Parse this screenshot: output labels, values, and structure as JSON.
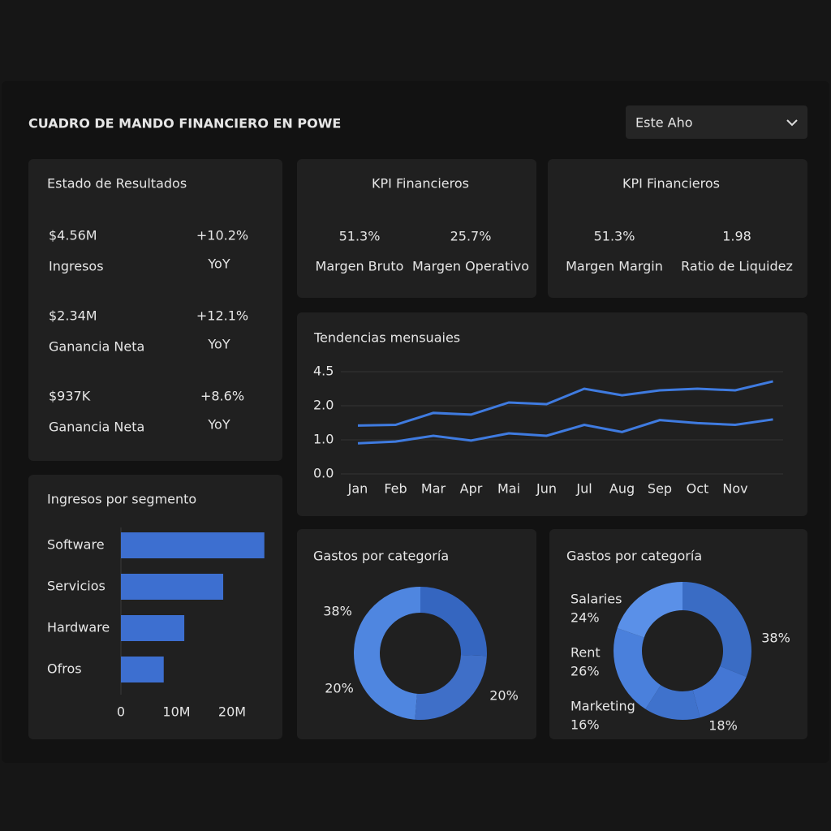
{
  "header": {
    "title": "CUADRO DE MANDO FINANCIERO EN POWE",
    "filter": "Este Aho"
  },
  "income_statement": {
    "title": "Estado de Resultados",
    "items": [
      {
        "value": "$4.56M",
        "label": "Ingresos",
        "change": "+10.2%",
        "period": "YoY"
      },
      {
        "value": "$2.34M",
        "label": "Ganancia Neta",
        "change": "+12.1%",
        "period": "YoY"
      },
      {
        "value": "$937K",
        "label": "Ganancia Neta",
        "change": "+8.6%",
        "period": "YoY"
      }
    ]
  },
  "kpis": [
    {
      "title": "KPI Financieros",
      "items": [
        {
          "value": "51.3%",
          "label": "Margen Bruto"
        },
        {
          "value": "25.7%",
          "label": "Margen Operativo"
        }
      ]
    },
    {
      "title": "KPI Financieros",
      "items": [
        {
          "value": "51.3%",
          "label": "Margen Margin"
        },
        {
          "value": "1.98",
          "label": "Ratio de Liquidez"
        }
      ]
    }
  ],
  "chart_data": [
    {
      "type": "line",
      "title": "Tendencias mensuaies",
      "categories": [
        "Jan",
        "Feb",
        "Mar",
        "Apr",
        "Mai",
        "Jun",
        "Jul",
        "Aug",
        "Sep",
        "Oct",
        "Nov",
        null
      ],
      "series": [
        {
          "color": "#3f7be0",
          "values": [
            1.42,
            1.44,
            1.79,
            1.74,
            2.24,
            2.12,
            3.25,
            2.77,
            3.13,
            3.25,
            3.13,
            3.79
          ]
        },
        {
          "color": "#3f7be0",
          "values": [
            0.9,
            0.95,
            1.12,
            0.98,
            1.19,
            1.12,
            1.44,
            1.23,
            1.58,
            1.49,
            1.44,
            1.6
          ]
        }
      ],
      "ylim": [
        0,
        4.5
      ],
      "yticks": [
        {
          "value": 0,
          "label": "0.0"
        },
        {
          "value": 1,
          "label": "1.0"
        },
        {
          "value": 2,
          "label": "2.0"
        },
        {
          "value": 4.5,
          "label": "4.5"
        }
      ],
      "grid": true
    },
    {
      "type": "barh",
      "title": "Ingresos por segmento",
      "categories": [
        "Software",
        "Servicios",
        "Hardware",
        "Ofros"
      ],
      "values": [
        25.8,
        18.4,
        11.4,
        7.7
      ],
      "color": "#3d6fd0",
      "xlim": [
        0,
        26
      ],
      "xticks": [
        0,
        {
          "value": 10,
          "label": "10M"
        },
        {
          "value": 20,
          "label": "20M"
        }
      ]
    },
    {
      "type": "donut",
      "title": "Gastos por categoría",
      "values": [
        38,
        20,
        20
      ],
      "value_labels": [
        "38%",
        "20%",
        "20%"
      ],
      "colors": [
        "#4f86e0",
        "#3f6fc8",
        "#3566c0"
      ]
    },
    {
      "type": "donut",
      "title": "Gastos por categoría",
      "categories": [
        null,
        null,
        "Marketing",
        "Rent",
        "Salaries"
      ],
      "values": [
        38,
        18,
        16,
        26,
        24
      ],
      "value_labels": [
        "38%",
        "18%",
        "16%",
        "26%",
        "24%"
      ],
      "colors": [
        "#3a6cc4",
        "#4477d4",
        "#3f72cc",
        "#4a80dc",
        "#5a90e8"
      ]
    }
  ]
}
